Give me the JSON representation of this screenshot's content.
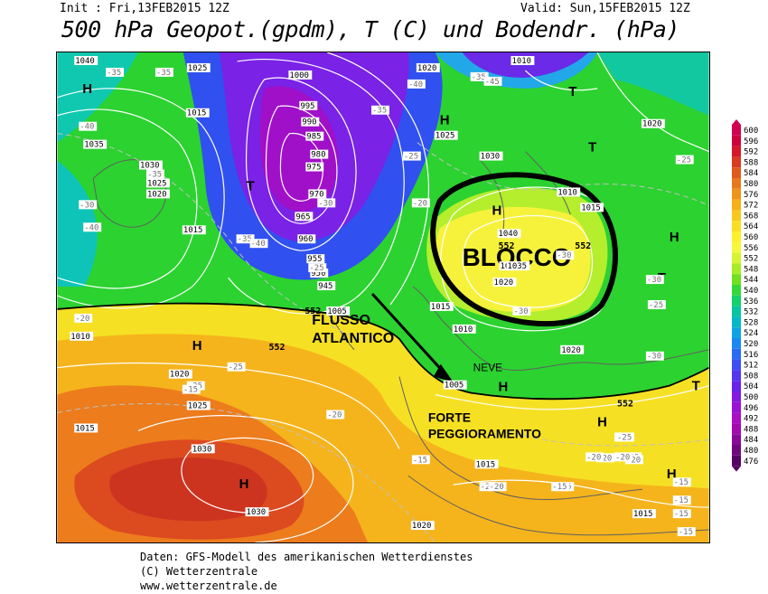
{
  "header": {
    "init": "Init : Fri,13FEB2015 12Z",
    "valid": "Valid: Sun,15FEB2015 12Z",
    "title": "500 hPa Geopot.(gpdm), T (C) und Bodendr. (hPa)"
  },
  "annotations": {
    "block_label": "BLOCCO",
    "flow_label_1": "FLUSSO",
    "flow_label_2": "ATLANTICO",
    "snow_label": "NEVE",
    "worsening_1": "FORTE",
    "worsening_2": "PEGGIORAMENTO"
  },
  "pressure_labels": [
    {
      "t": "H"
    },
    {
      "t": "H"
    },
    {
      "t": "H"
    },
    {
      "t": "H"
    },
    {
      "t": "H"
    },
    {
      "t": "H"
    },
    {
      "t": "H"
    },
    {
      "t": "H"
    },
    {
      "t": "H"
    },
    {
      "t": "T"
    },
    {
      "t": "T"
    },
    {
      "t": "T"
    },
    {
      "t": "T"
    },
    {
      "t": "T"
    }
  ],
  "isobar_labels": [
    "1040",
    "1035",
    "1030",
    "1025",
    "1020",
    "1015",
    "1015",
    "1000",
    "995",
    "990",
    "985",
    "980",
    "975",
    "970",
    "965",
    "960",
    "955",
    "950",
    "945",
    "1005",
    "1020",
    "1025",
    "1030",
    "1040",
    "1035",
    "1010",
    "1010",
    "1015",
    "1020",
    "1025",
    "1020",
    "1015",
    "1015",
    "1010",
    "1005",
    "1020",
    "1025",
    "1030",
    "1030",
    "1020",
    "1015",
    "1015",
    "1020",
    "1010",
    "1035"
  ],
  "geopot_labels": [
    "552",
    "552",
    "552",
    "552",
    "552"
  ],
  "temp_labels": [
    "-35",
    "-35",
    "-40",
    "-35",
    "-40",
    "-35",
    "-30",
    "-35",
    "-40",
    "-30",
    "-25",
    "-20",
    "-25",
    "-30",
    "-40",
    "-45",
    "-35",
    "-30",
    "-30",
    "-25",
    "-20",
    "-25",
    "-25",
    "-20",
    "-15",
    "-15",
    "-20",
    "-15",
    "-20",
    "-25",
    "-20",
    "-15",
    "-15",
    "-15",
    "-15",
    "-20",
    "-25",
    "-30",
    "-25",
    "-20",
    "-20",
    "-20",
    "-15"
  ],
  "legend": {
    "values": [
      "600",
      "596",
      "592",
      "588",
      "584",
      "580",
      "576",
      "572",
      "568",
      "564",
      "560",
      "556",
      "552",
      "548",
      "544",
      "540",
      "536",
      "532",
      "528",
      "524",
      "520",
      "516",
      "512",
      "508",
      "504",
      "500",
      "496",
      "492",
      "488",
      "484",
      "480",
      "476"
    ],
    "colors": [
      "#d10050",
      "#d0003c",
      "#d4182a",
      "#d83a22",
      "#e05a1e",
      "#e8781c",
      "#ef941a",
      "#f5b01a",
      "#f8c81e",
      "#fbde22",
      "#fef028",
      "#f5f83a",
      "#d6f432",
      "#a8ec28",
      "#70e020",
      "#34d838",
      "#12d06a",
      "#06c6a0",
      "#04b8c8",
      "#0ea4e4",
      "#1a88f4",
      "#2a6af6",
      "#3c4ef4",
      "#5236f0",
      "#6a22ea",
      "#8418e0",
      "#9a12d4",
      "#ac0ec4",
      "#a40ab0",
      "#8a0898",
      "#70067e",
      "#560464"
    ]
  },
  "footer": {
    "line1": "Daten: GFS-Modell des amerikanischen Wetterdienstes",
    "line2": "(C) Wetterzentrale",
    "line3": "www.wetterzentrale.de"
  }
}
